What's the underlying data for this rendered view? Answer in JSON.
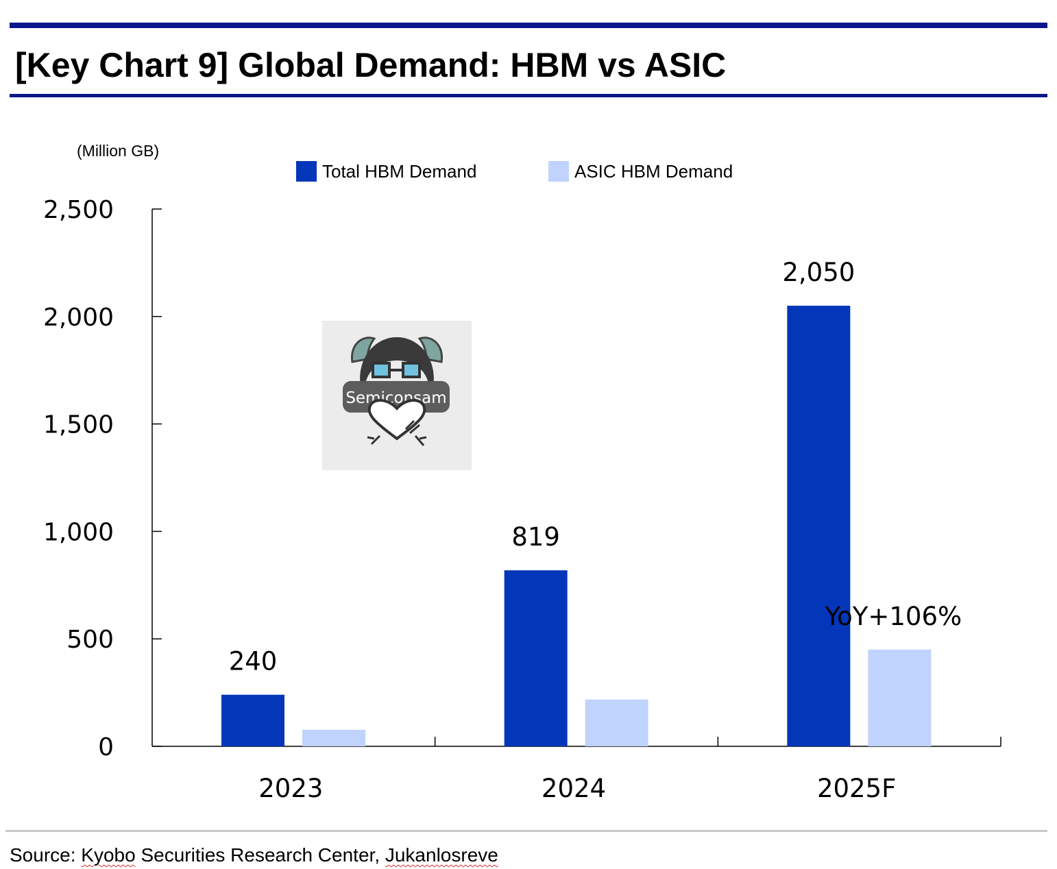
{
  "title": "[Key Chart 9] Global Demand: HBM vs ASIC",
  "colors": {
    "rule": "#0a1689",
    "total": "#0336b8",
    "asic": "#c0d3fd"
  },
  "watermark": {
    "text": "Semiconsam"
  },
  "source": {
    "prefix": "Source: ",
    "name1": "Kyobo",
    "middle": " Securities Research Center, ",
    "name2": "Jukanlosreve"
  },
  "chart_data": {
    "type": "bar",
    "unit_label": "(Million GB)",
    "categories": [
      "2023",
      "2024",
      "2025F"
    ],
    "series": [
      {
        "name": "Total HBM Demand",
        "color": "#0336b8",
        "values": [
          240,
          819,
          2050
        ],
        "labels": [
          "240",
          "819",
          "2,050"
        ]
      },
      {
        "name": "ASIC HBM Demand",
        "color": "#c0d3fd",
        "values": [
          77,
          218,
          450
        ],
        "labels": [
          "",
          "",
          "YoY+106%"
        ]
      }
    ],
    "ylim": [
      0,
      2500
    ],
    "yticks": [
      0,
      500,
      1000,
      1500,
      2000,
      2500
    ],
    "ytick_labels": [
      "0",
      "500",
      "1,000",
      "1,500",
      "2,000",
      "2,500"
    ],
    "legend_position": "top",
    "grid": false
  }
}
